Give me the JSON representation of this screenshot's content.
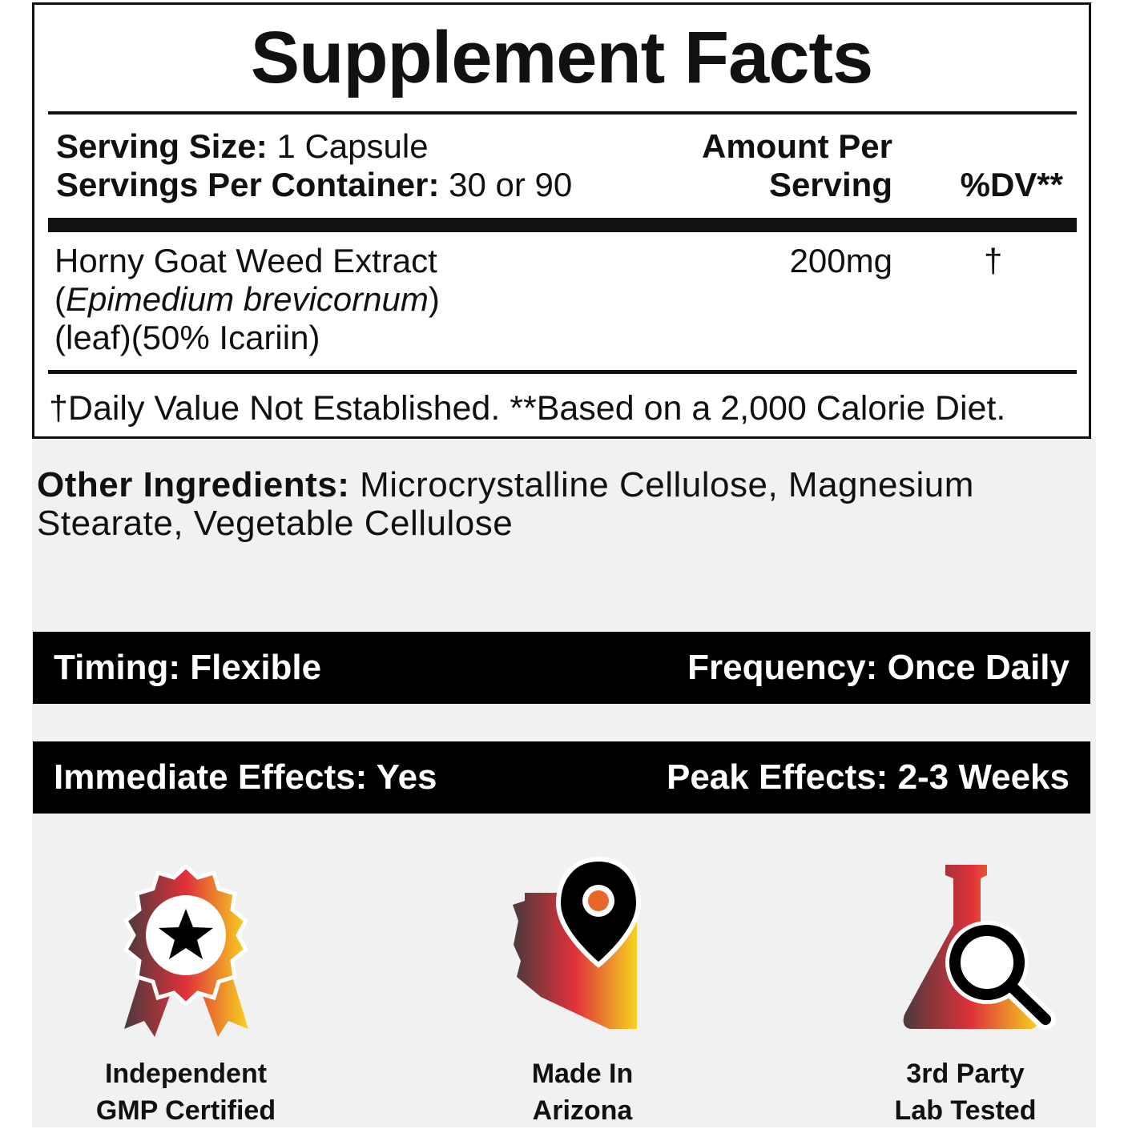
{
  "facts": {
    "title": "Supplement Facts",
    "serving_size_label": "Serving Size:",
    "serving_size_value": "1 Capsule",
    "servings_label": "Servings Per Container:",
    "servings_value": "30 or 90",
    "amount_header_1": "Amount Per",
    "amount_header_2": "Serving",
    "dv_header": "%DV**",
    "ingredient": {
      "name": "Horny Goat Weed Extract",
      "latin": "Epimedium brevicornum",
      "detail": "(leaf)(50% Icariin)",
      "amount": "200mg",
      "dv": "†"
    },
    "footnote": "†Daily Value Not Established. **Based on a 2,000 Calorie Diet."
  },
  "other_ingredients": {
    "label": "Other Ingredients:",
    "value": "Microcrystalline Cellulose, Magnesium Stearate, Vegetable Cellulose"
  },
  "bars": [
    {
      "left": "Timing: Flexible",
      "right": "Frequency: Once Daily"
    },
    {
      "left": "Immediate Effects: Yes",
      "right": "Peak Effects: 2-3 Weeks"
    }
  ],
  "badges": [
    {
      "icon": "award-ribbon-star-icon",
      "line1": "Independent",
      "line2": "GMP Certified"
    },
    {
      "icon": "arizona-map-pin-icon",
      "line1": "Made In",
      "line2": "Arizona"
    },
    {
      "icon": "flask-magnifier-icon",
      "line1": "3rd Party",
      "line2": "Lab Tested"
    }
  ],
  "colors": {
    "gradient_dark": "#4a3a3c",
    "gradient_red": "#e0313a",
    "gradient_yellow": "#f6d31f",
    "panel": "#f1f1f1"
  }
}
